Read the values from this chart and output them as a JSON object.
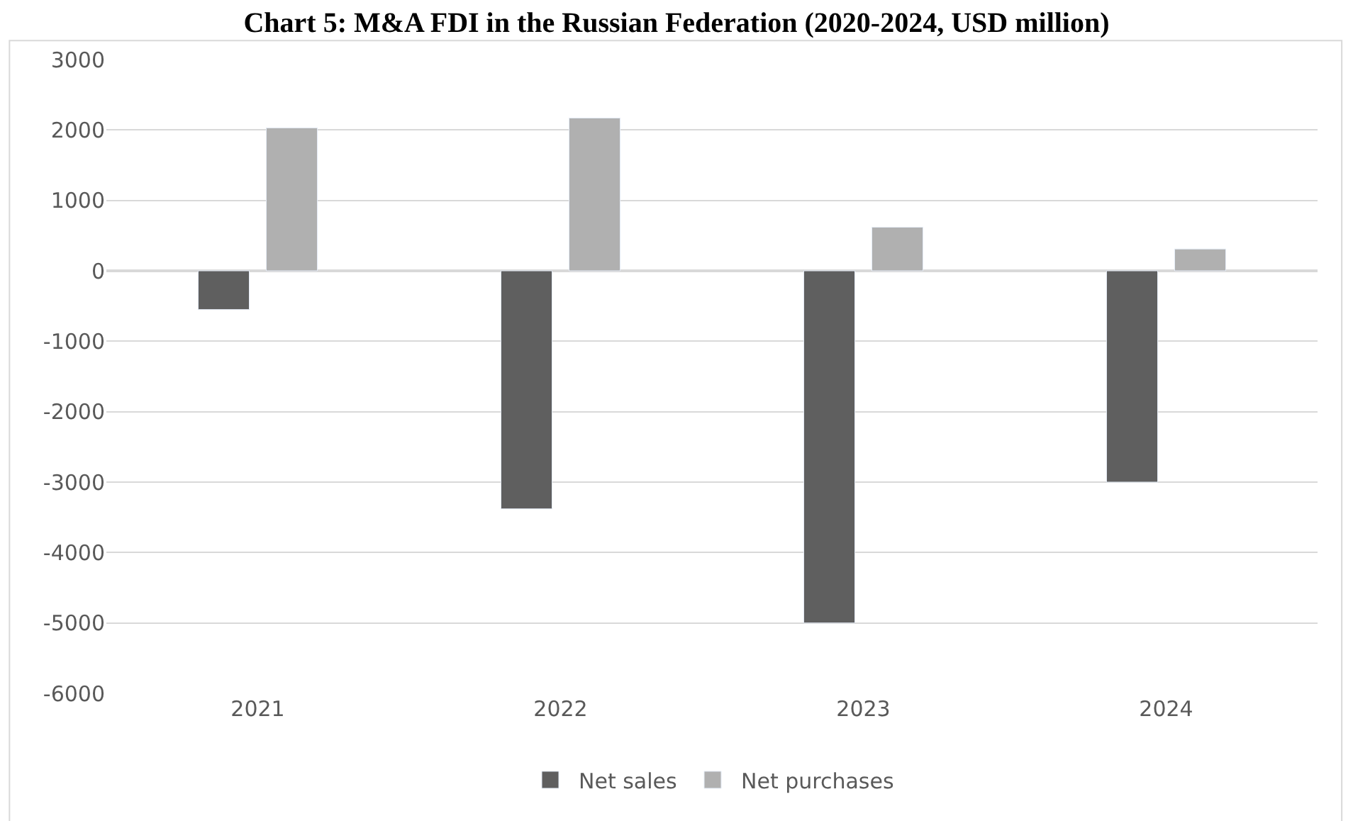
{
  "chart_data": {
    "type": "bar",
    "title": "Chart 5: M&A FDI in the Russian Federation (2020-2024, USD million)",
    "categories": [
      "2021",
      "2022",
      "2023",
      "2024"
    ],
    "series": [
      {
        "name": "Net sales",
        "color": "#5f5f5f",
        "values": [
          -550,
          -3380,
          -5000,
          -3000
        ]
      },
      {
        "name": "Net purchases",
        "color": "#b0b0b0",
        "values": [
          2030,
          2170,
          620,
          310
        ]
      }
    ],
    "ylim": [
      -6000,
      3000
    ],
    "yticks": [
      -6000,
      -5000,
      -4000,
      -3000,
      -2000,
      -1000,
      0,
      1000,
      2000,
      3000
    ],
    "grid": "y",
    "legend": "bottom"
  }
}
